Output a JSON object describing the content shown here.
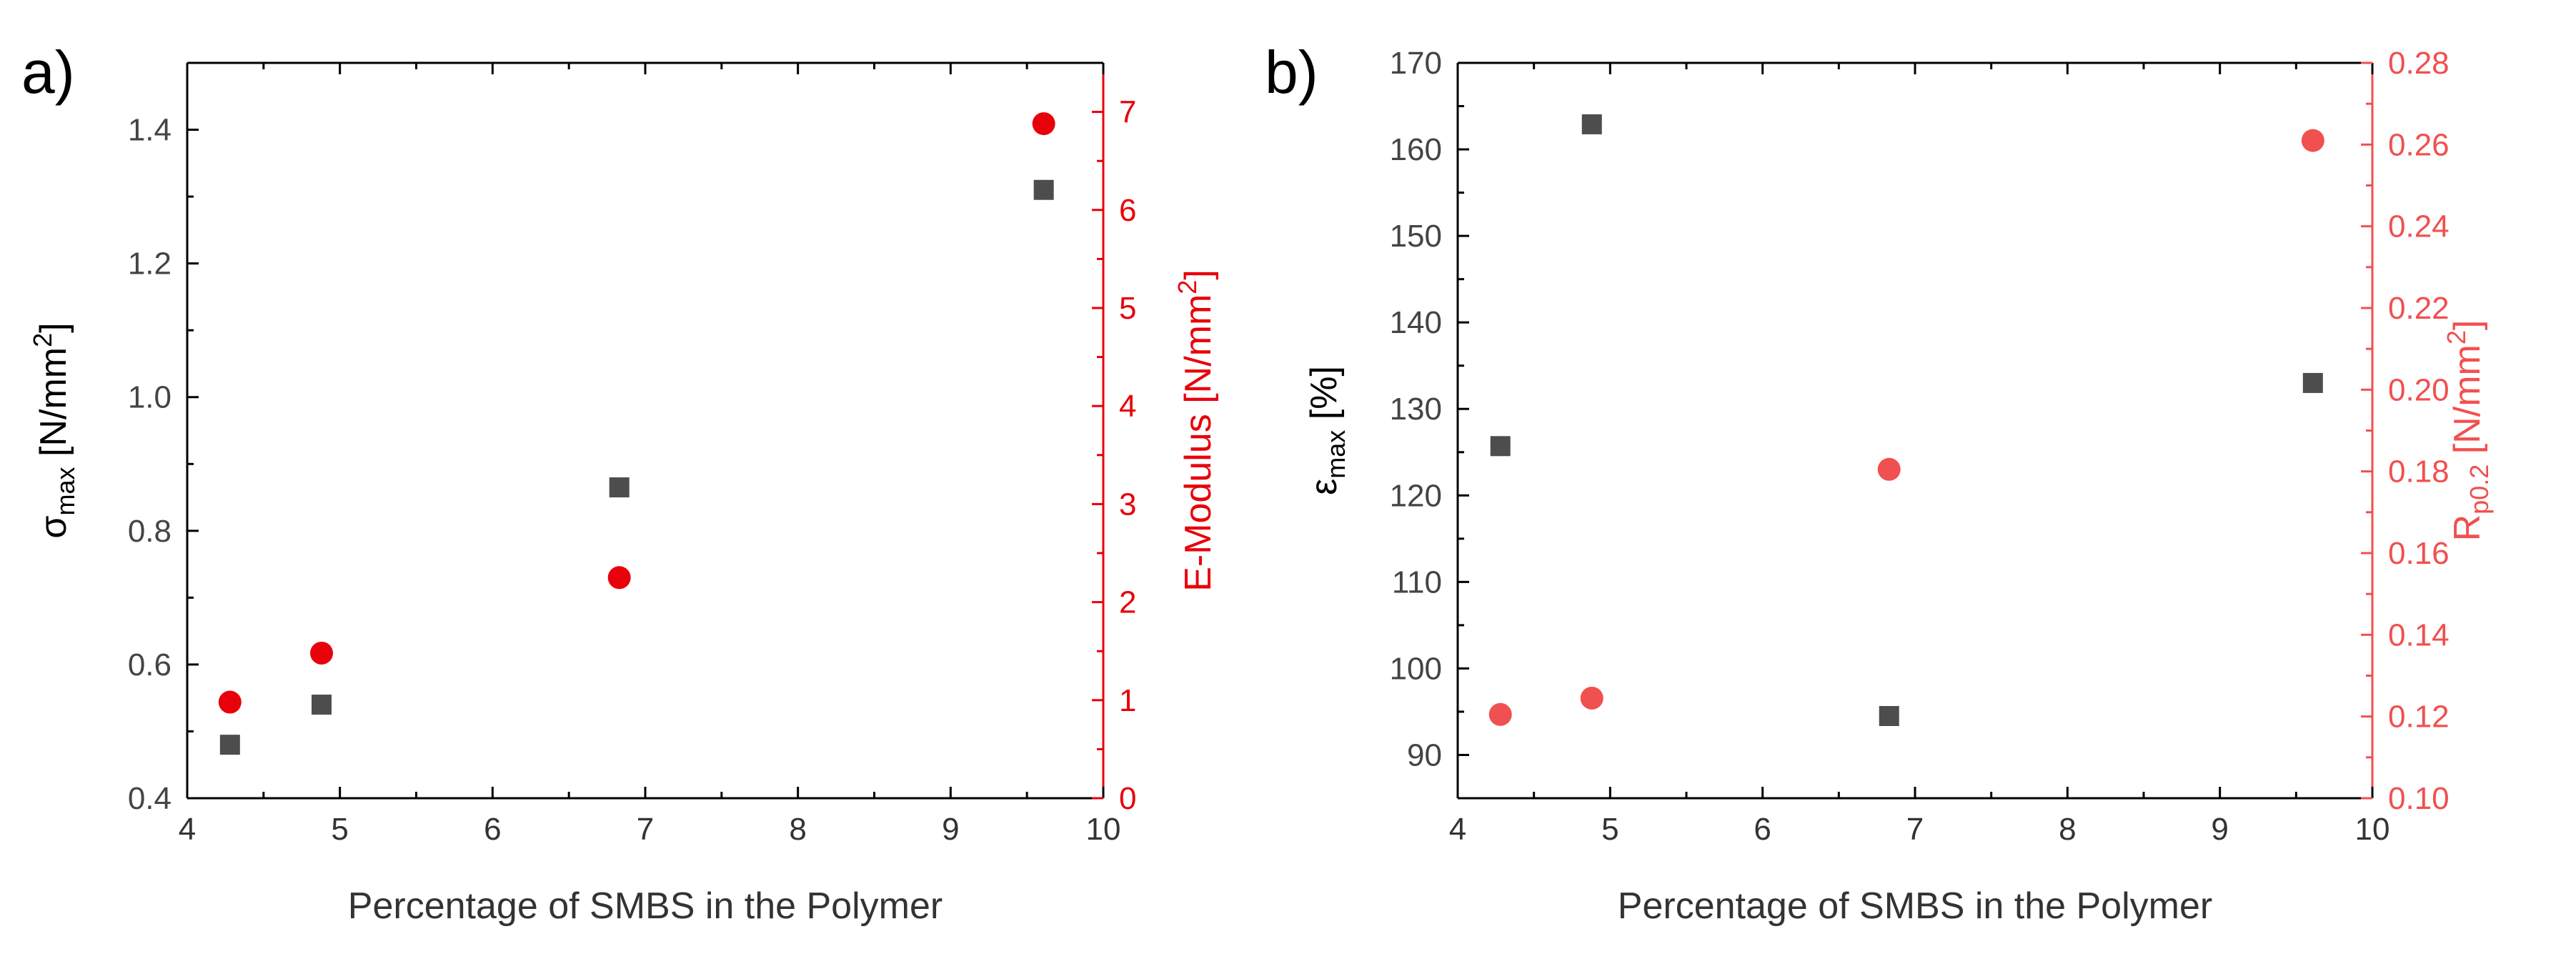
{
  "chart_data": [
    {
      "type": "scatter",
      "panel_label": "a)",
      "xlabel": "Percentage of SMBS in the Polymer",
      "xlim": [
        4,
        10
      ],
      "x_ticks": [
        "4",
        "5",
        "6",
        "7",
        "8",
        "9",
        "10"
      ],
      "left_axis": {
        "label_main": "σ",
        "label_sub": "max",
        "label_unit": " [N/mm",
        "label_sup": "2",
        "label_end": "]",
        "ylim": [
          0.4,
          1.5
        ],
        "ticks": [
          "0.4",
          "0.6",
          "0.8",
          "1.0",
          "1.2",
          "1.4"
        ],
        "color": "#4d4d4d"
      },
      "right_axis": {
        "label_main": "E-Modulus [N/mm",
        "label_sup": "2",
        "label_end": "]",
        "ylim": [
          0,
          7.5
        ],
        "ticks": [
          "0",
          "1",
          "2",
          "3",
          "4",
          "5",
          "6",
          "7"
        ],
        "color": "#e8000b"
      },
      "series": [
        {
          "name": "σmax",
          "axis": "left",
          "marker": "square",
          "color": "#4d4d4d",
          "x": [
            4.28,
            4.88,
            6.83,
            9.61
          ],
          "y": [
            0.48,
            0.54,
            0.865,
            1.31
          ]
        },
        {
          "name": "E-Modulus",
          "axis": "right",
          "marker": "circle",
          "color": "#e8000b",
          "x": [
            4.28,
            4.88,
            6.83,
            9.61
          ],
          "y": [
            0.98,
            1.48,
            2.25,
            6.88
          ]
        }
      ]
    },
    {
      "type": "scatter",
      "panel_label": "b)",
      "xlabel": "Percentage of SMBS in the Polymer",
      "xlim": [
        4,
        10
      ],
      "x_ticks": [
        "4",
        "5",
        "6",
        "7",
        "8",
        "9",
        "10"
      ],
      "left_axis": {
        "label_main": "ε",
        "label_sub": "max",
        "label_unit": " [%]",
        "label_sup": "",
        "label_end": "",
        "ylim": [
          85,
          170
        ],
        "ticks": [
          "90",
          "100",
          "110",
          "120",
          "130",
          "140",
          "150",
          "160",
          "170"
        ],
        "color": "#4d4d4d"
      },
      "right_axis": {
        "label_main": "R",
        "label_sub": "p0.2",
        "label_unit": " [N/mm",
        "label_sup": "2",
        "label_end": "]",
        "ylim": [
          0.1,
          0.28
        ],
        "ticks": [
          "0.10",
          "0.12",
          "0.14",
          "0.16",
          "0.18",
          "0.20",
          "0.22",
          "0.24",
          "0.26",
          "0.28"
        ],
        "color": "#f0504f"
      },
      "series": [
        {
          "name": "εmax",
          "axis": "left",
          "marker": "square",
          "color": "#4d4d4d",
          "x": [
            4.28,
            4.88,
            6.83,
            9.61
          ],
          "y": [
            125.7,
            162.9,
            94.5,
            133.0
          ]
        },
        {
          "name": "Rp0.2",
          "axis": "right",
          "marker": "circle",
          "color": "#f0504f",
          "x": [
            4.28,
            4.88,
            6.83,
            9.61
          ],
          "y": [
            0.1205,
            0.1245,
            0.1805,
            0.261
          ]
        }
      ]
    }
  ]
}
